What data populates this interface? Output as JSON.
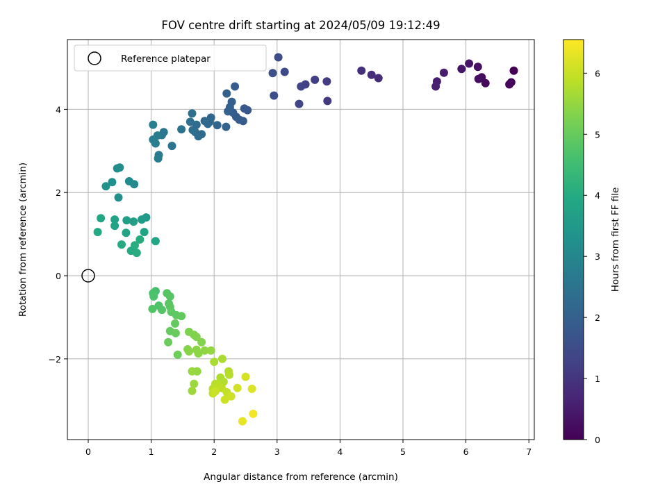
{
  "chart_data": {
    "type": "scatter",
    "title": "FOV centre drift starting at 2024/05/09 19:12:49",
    "xlabel": "Angular distance from reference (arcmin)",
    "ylabel": "Rotation from reference (arcmin)",
    "xlim": [
      -0.33,
      7.1
    ],
    "ylim": [
      -3.95,
      5.7
    ],
    "xticks": [
      "0",
      "1",
      "2",
      "3",
      "4",
      "5",
      "6",
      "7"
    ],
    "yticks": [
      "−2",
      "0",
      "2",
      "4"
    ],
    "grid": true,
    "legend": {
      "placement": "top-left",
      "entries": [
        "Reference platepar"
      ]
    },
    "reference_point": {
      "x": 0,
      "y": 0,
      "label": "Reference platepar"
    },
    "colorbar": {
      "label": "Hours from first FF file",
      "colormap": "viridis",
      "range": [
        0,
        6.55
      ],
      "ticks": [
        "0",
        "1",
        "2",
        "3",
        "4",
        "5",
        "6"
      ]
    },
    "series": [
      {
        "points": [
          [
            6.76,
            4.93,
            0.0
          ],
          [
            6.72,
            4.65,
            0.05
          ],
          [
            6.69,
            4.6,
            0.1
          ],
          [
            6.31,
            4.63,
            0.15
          ],
          [
            6.25,
            4.77,
            0.2
          ],
          [
            6.2,
            4.73,
            0.25
          ],
          [
            6.19,
            5.02,
            0.3
          ],
          [
            6.05,
            5.1,
            0.35
          ],
          [
            5.93,
            4.97,
            0.4
          ],
          [
            5.65,
            4.88,
            0.5
          ],
          [
            5.54,
            4.67,
            0.55
          ],
          [
            5.52,
            4.55,
            0.6
          ],
          [
            4.61,
            4.75,
            0.8
          ],
          [
            4.5,
            4.83,
            0.85
          ],
          [
            4.34,
            4.93,
            0.9
          ],
          [
            3.8,
            4.2,
            1.1
          ],
          [
            3.79,
            4.67,
            1.15
          ],
          [
            3.6,
            4.71,
            1.2
          ],
          [
            3.45,
            4.6,
            1.25
          ],
          [
            3.38,
            4.55,
            1.3
          ],
          [
            3.35,
            4.13,
            1.35
          ],
          [
            3.12,
            4.9,
            1.45
          ],
          [
            3.02,
            5.25,
            1.5
          ],
          [
            2.95,
            4.33,
            1.55
          ],
          [
            2.93,
            4.87,
            1.6
          ],
          [
            2.53,
            3.98,
            1.75
          ],
          [
            2.48,
            4.02,
            1.8
          ],
          [
            2.46,
            3.72,
            1.85
          ],
          [
            2.4,
            3.75,
            1.88
          ],
          [
            2.35,
            3.82,
            1.9
          ],
          [
            2.33,
            4.55,
            1.92
          ],
          [
            2.3,
            3.92,
            1.95
          ],
          [
            2.28,
            4.18,
            1.98
          ],
          [
            2.25,
            4.05,
            2.0
          ],
          [
            2.22,
            3.95,
            2.02
          ],
          [
            2.2,
            4.38,
            2.05
          ],
          [
            2.19,
            3.58,
            2.08
          ],
          [
            2.05,
            3.62,
            2.12
          ],
          [
            1.95,
            3.8,
            2.15
          ],
          [
            1.93,
            3.7,
            2.18
          ],
          [
            1.9,
            3.65,
            2.2
          ],
          [
            1.85,
            3.72,
            2.22
          ],
          [
            1.8,
            3.4,
            2.25
          ],
          [
            1.75,
            3.35,
            2.28
          ],
          [
            1.72,
            3.63,
            2.3
          ],
          [
            1.7,
            3.45,
            2.32
          ],
          [
            1.66,
            3.5,
            2.35
          ],
          [
            1.65,
            3.9,
            2.38
          ],
          [
            1.62,
            3.7,
            2.4
          ],
          [
            1.48,
            3.52,
            2.45
          ],
          [
            1.33,
            3.12,
            2.5
          ],
          [
            1.2,
            3.45,
            2.55
          ],
          [
            1.17,
            3.38,
            2.6
          ],
          [
            1.12,
            2.9,
            2.65
          ],
          [
            1.11,
            2.82,
            2.7
          ],
          [
            1.1,
            3.37,
            2.72
          ],
          [
            1.07,
            3.18,
            2.75
          ],
          [
            1.03,
            3.27,
            2.78
          ],
          [
            1.03,
            3.63,
            2.82
          ],
          [
            0.73,
            2.2,
            3.05
          ],
          [
            0.65,
            2.27,
            3.1
          ],
          [
            0.5,
            2.6,
            3.15
          ],
          [
            0.46,
            2.58,
            3.2
          ],
          [
            0.48,
            1.88,
            3.22
          ],
          [
            0.38,
            2.25,
            3.25
          ],
          [
            0.28,
            2.15,
            3.3
          ],
          [
            0.92,
            1.4,
            3.55
          ],
          [
            0.85,
            1.35,
            3.6
          ],
          [
            0.72,
            1.3,
            3.65
          ],
          [
            0.61,
            1.33,
            3.7
          ],
          [
            0.42,
            1.35,
            3.75
          ],
          [
            0.42,
            1.2,
            3.78
          ],
          [
            0.6,
            1.03,
            3.82
          ],
          [
            0.89,
            1.05,
            3.85
          ],
          [
            1.07,
            0.83,
            3.88
          ],
          [
            0.2,
            1.38,
            3.92
          ],
          [
            0.15,
            1.05,
            3.95
          ],
          [
            0.53,
            0.75,
            3.98
          ],
          [
            0.68,
            0.6,
            4.0
          ],
          [
            0.82,
            0.87,
            4.02
          ],
          [
            0.77,
            0.55,
            4.05
          ],
          [
            0.74,
            0.73,
            4.08
          ],
          [
            1.07,
            -0.37,
            4.6
          ],
          [
            1.03,
            -0.42,
            4.65
          ],
          [
            1.04,
            -0.5,
            4.68
          ],
          [
            1.12,
            -0.72,
            4.72
          ],
          [
            1.02,
            -0.8,
            4.75
          ],
          [
            1.17,
            -0.82,
            4.78
          ],
          [
            1.25,
            -0.42,
            4.8
          ],
          [
            1.3,
            -0.5,
            4.82
          ],
          [
            1.28,
            -0.67,
            4.85
          ],
          [
            1.3,
            -0.75,
            4.88
          ],
          [
            1.32,
            -0.87,
            4.9
          ],
          [
            1.4,
            -0.95,
            4.92
          ],
          [
            1.48,
            -0.97,
            4.95
          ],
          [
            1.38,
            -1.15,
            4.97
          ],
          [
            1.3,
            -1.33,
            5.0
          ],
          [
            1.39,
            -1.38,
            5.02
          ],
          [
            1.27,
            -1.6,
            5.05
          ],
          [
            1.42,
            -1.9,
            5.08
          ],
          [
            1.6,
            -1.35,
            5.25
          ],
          [
            1.68,
            -1.42,
            5.28
          ],
          [
            1.72,
            -1.47,
            5.3
          ],
          [
            1.8,
            -1.6,
            5.32
          ],
          [
            1.58,
            -1.77,
            5.35
          ],
          [
            1.6,
            -1.82,
            5.38
          ],
          [
            1.72,
            -1.78,
            5.4
          ],
          [
            1.75,
            -1.87,
            5.42
          ],
          [
            1.85,
            -1.8,
            5.45
          ],
          [
            1.95,
            -1.8,
            5.48
          ],
          [
            1.73,
            -2.3,
            5.5
          ],
          [
            1.65,
            -2.3,
            5.52
          ],
          [
            1.68,
            -2.6,
            5.55
          ],
          [
            1.65,
            -2.77,
            5.58
          ],
          [
            2.0,
            -2.07,
            5.7
          ],
          [
            2.13,
            -2.0,
            5.72
          ],
          [
            2.1,
            -2.45,
            5.75
          ],
          [
            2.15,
            -2.55,
            5.78
          ],
          [
            2.23,
            -2.3,
            5.8
          ],
          [
            2.24,
            -2.38,
            5.82
          ],
          [
            2.02,
            -2.6,
            5.85
          ],
          [
            1.98,
            -2.72,
            5.88
          ],
          [
            2.07,
            -2.65,
            5.9
          ],
          [
            2.12,
            -2.7,
            5.92
          ],
          [
            2.2,
            -2.8,
            5.95
          ],
          [
            2.23,
            -2.88,
            5.98
          ],
          [
            1.98,
            -2.83,
            6.0
          ],
          [
            2.02,
            -2.78,
            6.02
          ],
          [
            2.17,
            -2.98,
            6.05
          ],
          [
            2.27,
            -2.9,
            6.08
          ],
          [
            2.37,
            -2.7,
            6.1
          ],
          [
            2.5,
            -2.43,
            6.15
          ],
          [
            2.6,
            -2.72,
            6.2
          ],
          [
            2.45,
            -3.5,
            6.3
          ],
          [
            2.62,
            -3.32,
            6.45
          ]
        ]
      }
    ]
  }
}
